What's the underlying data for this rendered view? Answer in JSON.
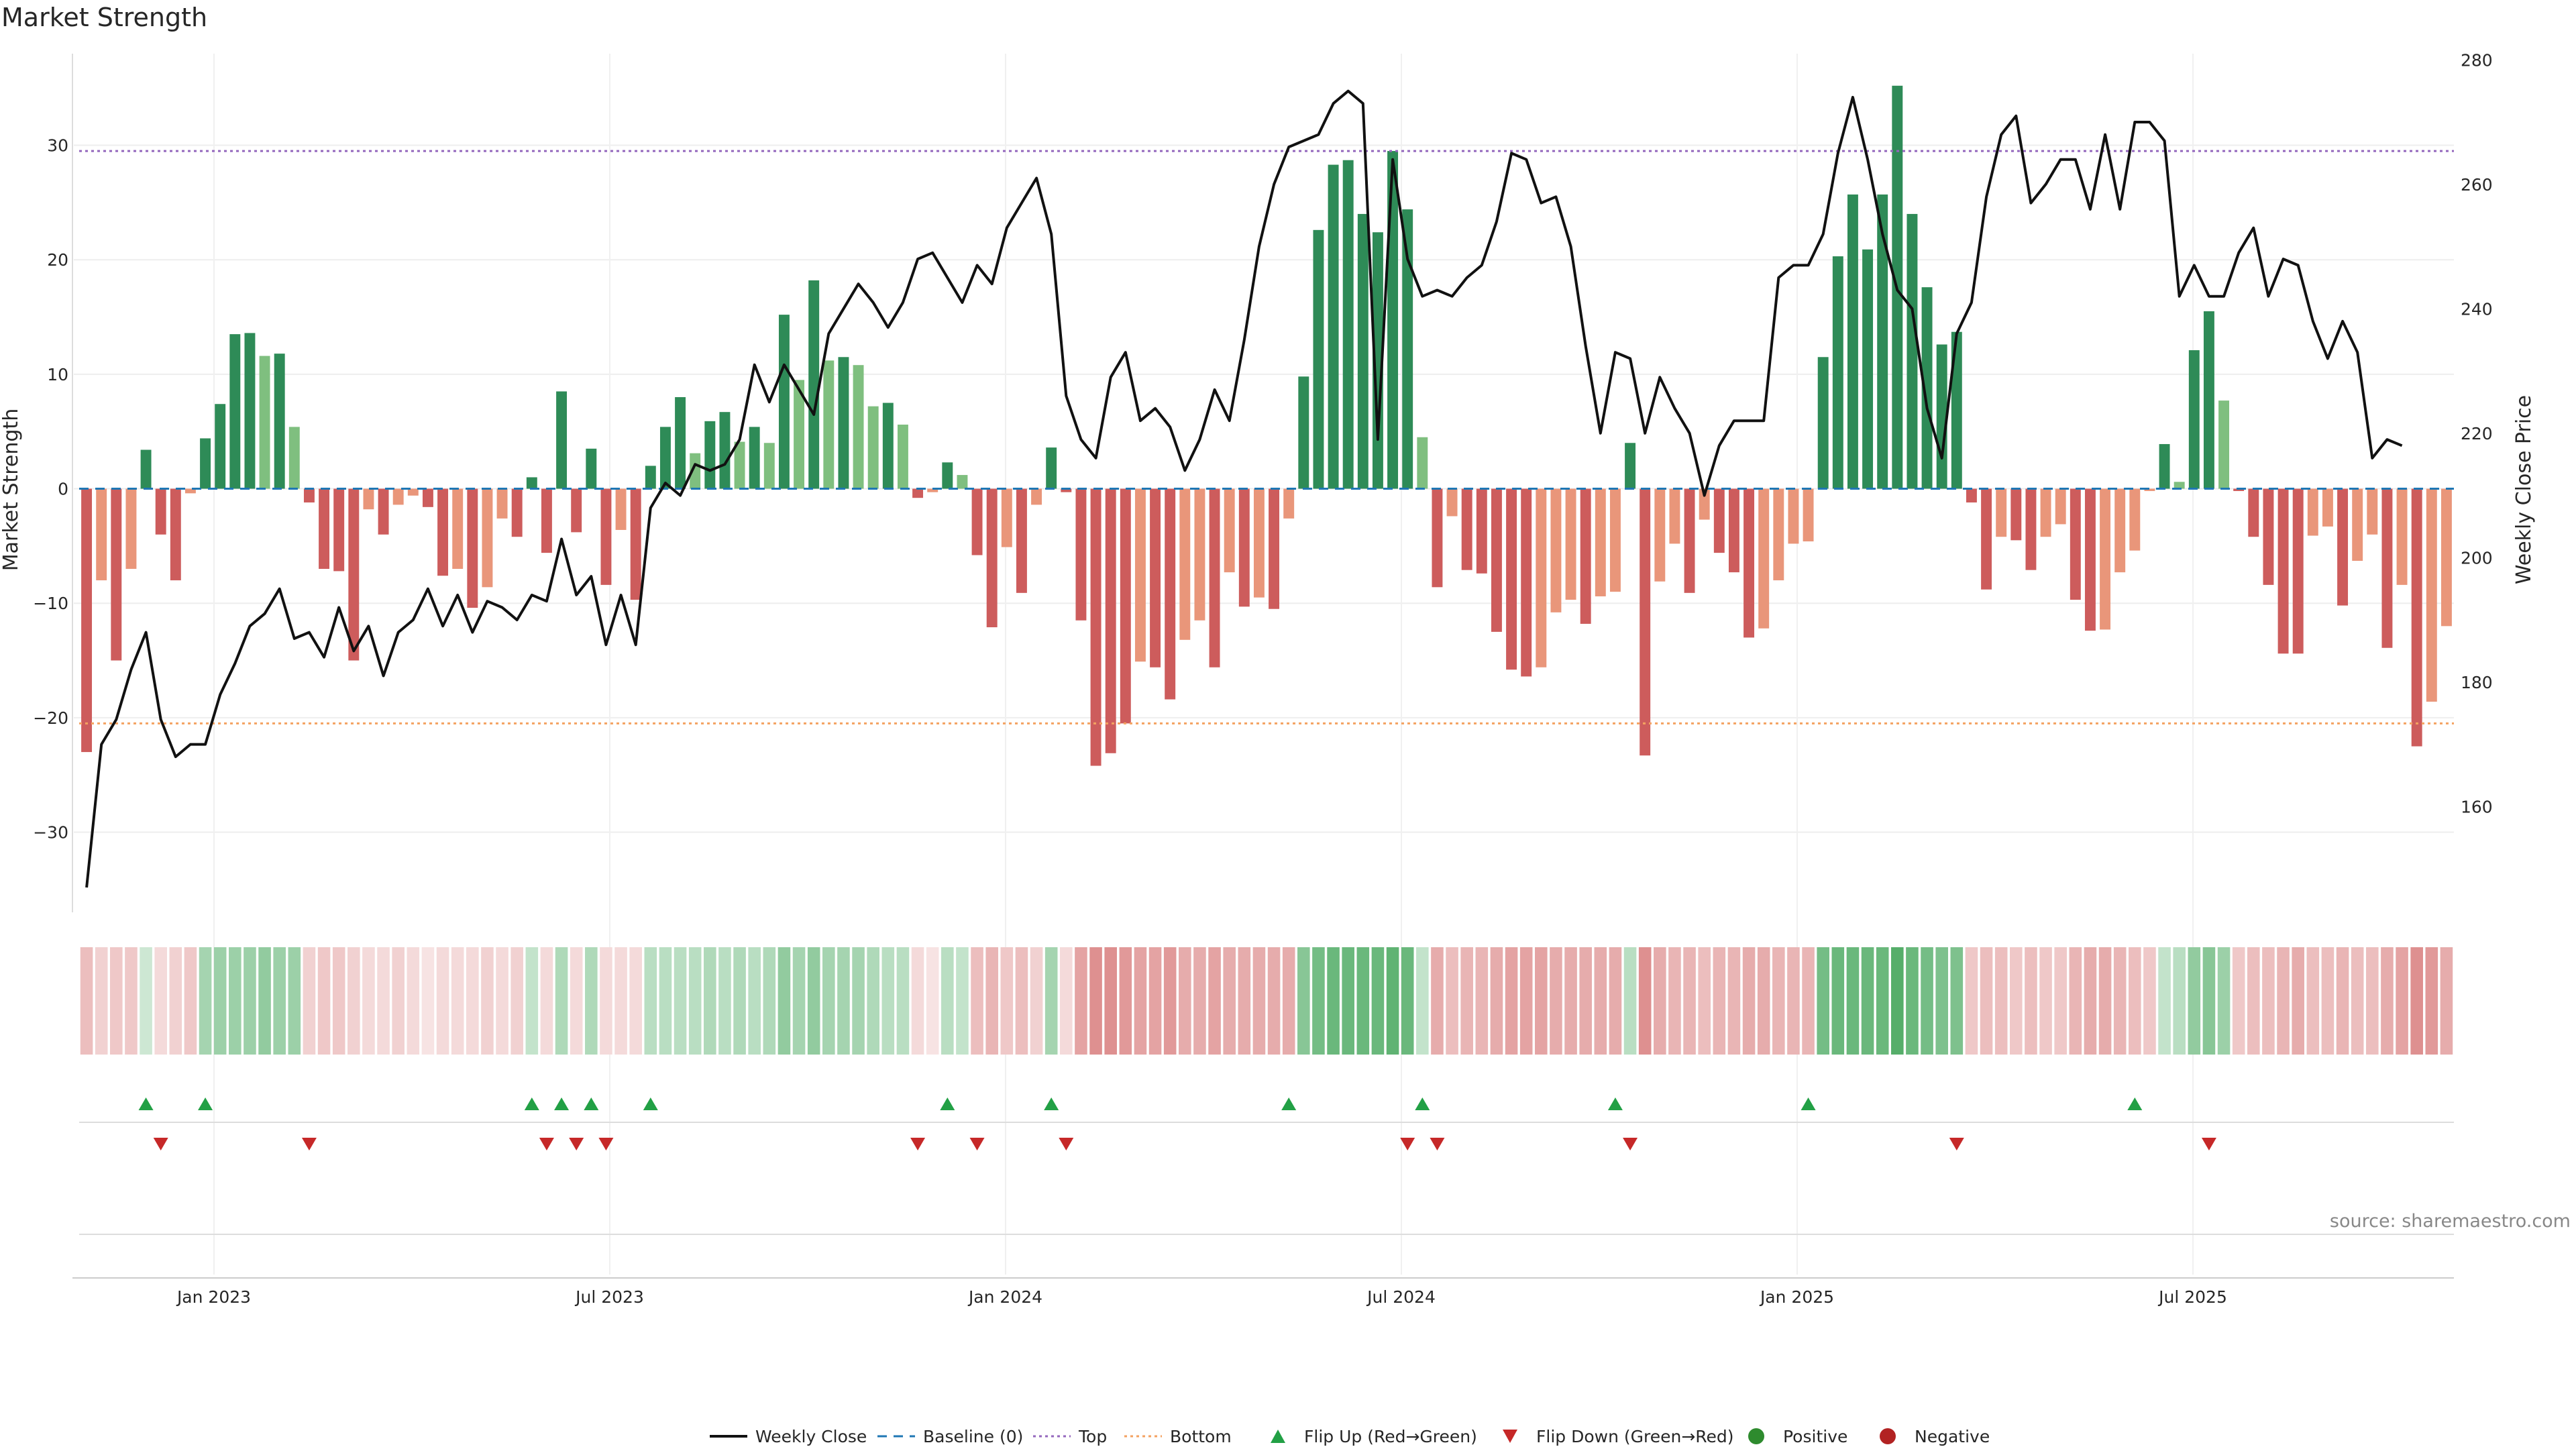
{
  "title": "Market Strength",
  "source": "source: sharemaestro.com",
  "colors": {
    "strong_green": "#2e8b57",
    "light_green": "#7fbf7f",
    "strong_red": "#cd5c5c",
    "light_red": "#e9967a",
    "price_line": "#111111",
    "baseline": "#1f77b4",
    "top": "#9467bd",
    "bottom": "#f4a261",
    "flip_up": "#22a045",
    "flip_down": "#c62828",
    "positive": "#2e8b2e",
    "negative": "#b22222"
  },
  "chart_data": {
    "type": "bar",
    "x_ticks": [
      "Jan 2023",
      "Jul 2023",
      "Jan 2024",
      "Jul 2024",
      "Jan 2025",
      "Jul 2025"
    ],
    "ylabel": "Market Strength",
    "y2label": "Weekly Close Price",
    "ylim": [
      -37,
      38
    ],
    "y2lim": [
      143,
      281
    ],
    "yticks": [
      -30,
      -20,
      -10,
      0,
      10,
      20,
      30
    ],
    "y2ticks": [
      160,
      180,
      200,
      220,
      240,
      260,
      280
    ],
    "top_level": 29.5,
    "bottom_level": -20.5,
    "strength": [
      -23,
      -8,
      -15,
      -7,
      3.4,
      -4,
      -8,
      -0.4,
      4.4,
      7.4,
      13.5,
      13.6,
      11.6,
      11.8,
      5.4,
      -1.2,
      -7,
      -7.2,
      -15,
      -1.8,
      -4,
      -1.4,
      -0.6,
      -1.6,
      -7.6,
      -7,
      -10.4,
      -8.6,
      -2.6,
      -4.2,
      1,
      -5.6,
      8.5,
      -3.8,
      3.5,
      -8.4,
      -3.6,
      -9.7,
      2,
      5.4,
      8,
      3.1,
      5.9,
      6.7,
      4.1,
      5.4,
      4,
      15.2,
      9.5,
      18.2,
      11.2,
      11.5,
      10.8,
      7.2,
      7.5,
      5.6,
      -0.8,
      -0.3,
      2.3,
      1.2,
      -5.8,
      -12.1,
      -5.1,
      -9.1,
      -1.4,
      3.6,
      -0.3,
      -11.5,
      -24.2,
      -23.1,
      -20.5,
      -15.1,
      -15.6,
      -18.4,
      -13.2,
      -11.5,
      -15.6,
      -7.3,
      -10.3,
      -9.5,
      -10.5,
      -2.6,
      9.8,
      22.6,
      28.3,
      28.7,
      24,
      22.4,
      29.5,
      24.4,
      4.5,
      -8.6,
      -2.4,
      -7.1,
      -7.4,
      -12.5,
      -15.8,
      -16.4,
      -15.6,
      -10.8,
      -9.7,
      -11.8,
      -9.4,
      -9,
      4,
      -23.3,
      -8.1,
      -4.8,
      -9.1,
      -2.7,
      -5.6,
      -7.3,
      -13,
      -12.2,
      -8,
      -4.8,
      -4.6,
      11.5,
      20.3,
      25.7,
      20.9,
      25.7,
      35.2,
      24,
      17.6,
      12.6,
      13.7,
      -1.2,
      -8.8,
      -4.2,
      -4.5,
      -7.1,
      -4.2,
      -3.1,
      -9.7,
      -12.4,
      -12.3,
      -7.3,
      -5.4,
      -0.2,
      3.9,
      0.6,
      12.1,
      15.5,
      7.7,
      -0.2,
      -4.2,
      -8.4,
      -14.4,
      -14.4,
      -4.1,
      -3.3,
      -10.2,
      -6.3,
      -4,
      -13.9,
      -8.4,
      -22.5,
      -18.6,
      -12
    ],
    "weekly_close": [
      147,
      170,
      174,
      182,
      188,
      174,
      168,
      170,
      170,
      178,
      183,
      189,
      191,
      195,
      187,
      188,
      184,
      192,
      185,
      189,
      181,
      188,
      190,
      195,
      189,
      194,
      188,
      193,
      192,
      190,
      194,
      193,
      203,
      194,
      197,
      186,
      194,
      186,
      208,
      212,
      210,
      215,
      214,
      215,
      219,
      231,
      225,
      231,
      227,
      223,
      236,
      240,
      244,
      241,
      237,
      241,
      248,
      249,
      245,
      241,
      247,
      244,
      253,
      257,
      261,
      252,
      226,
      219,
      216,
      229,
      233,
      222,
      224,
      221,
      214,
      219,
      227,
      222,
      235,
      250,
      260,
      266,
      267,
      268,
      273,
      275,
      273,
      219,
      264,
      248,
      242,
      243,
      242,
      245,
      247,
      254,
      265,
      264,
      257,
      258,
      250,
      234,
      220,
      233,
      232,
      220,
      229,
      224,
      220,
      210,
      218,
      222,
      222,
      222,
      245,
      247,
      247,
      252,
      265,
      274,
      264,
      252,
      243,
      240,
      224,
      216,
      236,
      241,
      258,
      268,
      271,
      257,
      260,
      264,
      264,
      256,
      268,
      256,
      270,
      270,
      267,
      242,
      247,
      242,
      242,
      249,
      253,
      242,
      248,
      247,
      238,
      232,
      238,
      233,
      216,
      219,
      218
    ],
    "heat_strength": [
      0.35,
      0.25,
      0.3,
      0.3,
      0.25,
      0.2,
      0.25,
      0.3,
      0.45,
      0.5,
      0.5,
      0.5,
      0.55,
      0.5,
      0.5,
      0.25,
      0.3,
      0.3,
      0.25,
      0.2,
      0.2,
      0.25,
      0.2,
      0.15,
      0.2,
      0.2,
      0.2,
      0.25,
      0.2,
      0.25,
      0.3,
      0.2,
      0.4,
      0.2,
      0.4,
      0.2,
      0.2,
      0.2,
      0.35,
      0.35,
      0.35,
      0.35,
      0.4,
      0.35,
      0.4,
      0.35,
      0.4,
      0.55,
      0.45,
      0.55,
      0.45,
      0.45,
      0.45,
      0.4,
      0.35,
      0.35,
      0.2,
      0.15,
      0.35,
      0.3,
      0.35,
      0.4,
      0.3,
      0.35,
      0.25,
      0.45,
      0.2,
      0.5,
      0.6,
      0.6,
      0.55,
      0.5,
      0.5,
      0.55,
      0.45,
      0.45,
      0.5,
      0.45,
      0.45,
      0.45,
      0.45,
      0.45,
      0.6,
      0.7,
      0.75,
      0.75,
      0.75,
      0.75,
      0.8,
      0.75,
      0.3,
      0.45,
      0.35,
      0.4,
      0.4,
      0.45,
      0.5,
      0.5,
      0.5,
      0.45,
      0.45,
      0.45,
      0.45,
      0.45,
      0.35,
      0.6,
      0.45,
      0.4,
      0.4,
      0.35,
      0.4,
      0.4,
      0.45,
      0.45,
      0.4,
      0.4,
      0.4,
      0.7,
      0.75,
      0.75,
      0.75,
      0.75,
      0.85,
      0.75,
      0.7,
      0.65,
      0.65,
      0.3,
      0.35,
      0.35,
      0.3,
      0.35,
      0.3,
      0.3,
      0.4,
      0.45,
      0.45,
      0.4,
      0.35,
      0.3,
      0.3,
      0.35,
      0.55,
      0.6,
      0.5,
      0.3,
      0.35,
      0.35,
      0.4,
      0.45,
      0.35,
      0.35,
      0.4,
      0.35,
      0.35,
      0.45,
      0.5,
      0.6,
      0.55,
      0.45
    ],
    "flip_up_weeks": [
      4,
      8,
      30,
      32,
      34,
      38,
      58,
      65,
      81,
      90,
      103,
      116,
      138
    ],
    "flip_down_weeks": [
      5,
      15,
      31,
      33,
      35,
      56,
      60,
      66,
      89,
      91,
      104,
      126,
      143
    ],
    "legend": [
      {
        "label": "Weekly Close",
        "kind": "line"
      },
      {
        "label": "Baseline (0)",
        "kind": "dash"
      },
      {
        "label": "Top",
        "kind": "dot"
      },
      {
        "label": "Bottom",
        "kind": "dot2"
      },
      {
        "label": "Flip Up (Red→Green)",
        "kind": "tri-up"
      },
      {
        "label": "Flip Down (Green→Red)",
        "kind": "tri-down"
      },
      {
        "label": "Positive",
        "kind": "circle-pos"
      },
      {
        "label": "Negative",
        "kind": "circle-neg"
      }
    ]
  }
}
